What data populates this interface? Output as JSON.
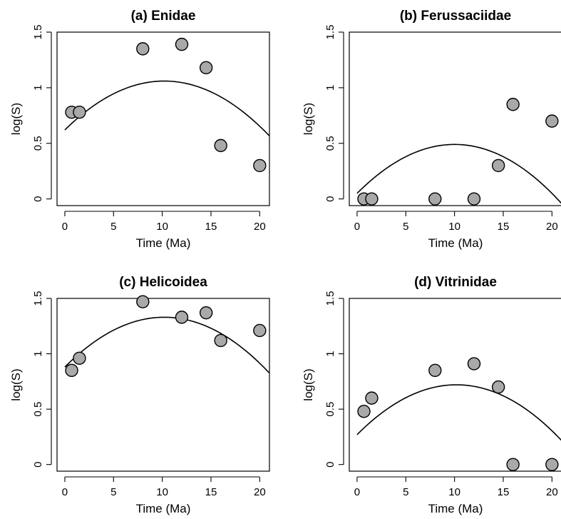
{
  "figure": {
    "point_color": "#a9a9a9",
    "line_color": "#000000"
  },
  "chart_data": [
    {
      "type": "scatter",
      "title": "(a) Enidae",
      "xlabel": "Time (Ma)",
      "ylabel": "log(S)",
      "xlim": [
        -0.8,
        21
      ],
      "ylim": [
        -0.06,
        1.5
      ],
      "x_ticks": [
        0,
        5,
        10,
        15,
        20
      ],
      "x_tick_labels": [
        "0",
        "5",
        "10",
        "15",
        "20"
      ],
      "y_ticks": [
        0,
        0.5,
        1,
        1.5
      ],
      "y_tick_labels": [
        "0",
        "0.5",
        "1",
        "1.5"
      ],
      "grid": false,
      "points": [
        {
          "x": 0.7,
          "y": 0.78
        },
        {
          "x": 1.5,
          "y": 0.78
        },
        {
          "x": 8,
          "y": 1.35
        },
        {
          "x": 12,
          "y": 1.39
        },
        {
          "x": 14.5,
          "y": 1.18
        },
        {
          "x": 16,
          "y": 0.48
        },
        {
          "x": 20,
          "y": 0.3
        }
      ],
      "fit": {
        "type": "quadratic",
        "peak_x": 10.2,
        "peak_y": 1.06,
        "y_at_0": 0.62
      }
    },
    {
      "type": "scatter",
      "title": "(b) Ferussaciidae",
      "xlabel": "Time (Ma)",
      "ylabel": "log(S)",
      "xlim": [
        -0.8,
        21
      ],
      "ylim": [
        -0.06,
        1.5
      ],
      "x_ticks": [
        0,
        5,
        10,
        15,
        20
      ],
      "x_tick_labels": [
        "0",
        "5",
        "10",
        "15",
        "20"
      ],
      "y_ticks": [
        0,
        0.5,
        1,
        1.5
      ],
      "y_tick_labels": [
        "0",
        "0.5",
        "1",
        "1.5"
      ],
      "grid": false,
      "points": [
        {
          "x": 0.7,
          "y": 0
        },
        {
          "x": 1.5,
          "y": 0
        },
        {
          "x": 8,
          "y": 0
        },
        {
          "x": 12,
          "y": 0
        },
        {
          "x": 14.5,
          "y": 0.3
        },
        {
          "x": 16,
          "y": 0.85
        },
        {
          "x": 20,
          "y": 0.7
        }
      ],
      "fit": {
        "type": "quadratic",
        "peak_x": 10,
        "peak_y": 0.49,
        "y_at_0": 0.05
      }
    },
    {
      "type": "scatter",
      "title": "(c) Helicoidea",
      "xlabel": "Time (Ma)",
      "ylabel": "log(S)",
      "xlim": [
        -0.8,
        21
      ],
      "ylim": [
        -0.06,
        1.5
      ],
      "x_ticks": [
        0,
        5,
        10,
        15,
        20
      ],
      "x_tick_labels": [
        "0",
        "5",
        "10",
        "15",
        "20"
      ],
      "y_ticks": [
        0,
        0.5,
        1,
        1.5
      ],
      "y_tick_labels": [
        "0",
        "0.5",
        "1",
        "1.5"
      ],
      "grid": false,
      "points": [
        {
          "x": 0.7,
          "y": 0.85
        },
        {
          "x": 1.5,
          "y": 0.96
        },
        {
          "x": 8,
          "y": 1.47
        },
        {
          "x": 12,
          "y": 1.33
        },
        {
          "x": 14.5,
          "y": 1.37
        },
        {
          "x": 16,
          "y": 1.12
        },
        {
          "x": 20,
          "y": 1.21
        }
      ],
      "fit": {
        "type": "quadratic",
        "peak_x": 10.2,
        "peak_y": 1.33,
        "y_at_0": 0.88
      }
    },
    {
      "type": "scatter",
      "title": "(d) Vitrinidae",
      "xlabel": "Time (Ma)",
      "ylabel": "log(S)",
      "xlim": [
        -0.8,
        21
      ],
      "ylim": [
        -0.06,
        1.5
      ],
      "x_ticks": [
        0,
        5,
        10,
        15,
        20
      ],
      "x_tick_labels": [
        "0",
        "5",
        "10",
        "15",
        "20"
      ],
      "y_ticks": [
        0,
        0.5,
        1,
        1.5
      ],
      "y_tick_labels": [
        "0",
        "0.5",
        "1",
        "1.5"
      ],
      "grid": false,
      "points": [
        {
          "x": 0.7,
          "y": 0.48
        },
        {
          "x": 1.5,
          "y": 0.6
        },
        {
          "x": 8,
          "y": 0.85
        },
        {
          "x": 12,
          "y": 0.91
        },
        {
          "x": 14.5,
          "y": 0.7
        },
        {
          "x": 16,
          "y": 0
        },
        {
          "x": 20,
          "y": 0
        }
      ],
      "fit": {
        "type": "quadratic",
        "peak_x": 10.2,
        "peak_y": 0.72,
        "y_at_0": 0.27
      }
    }
  ]
}
